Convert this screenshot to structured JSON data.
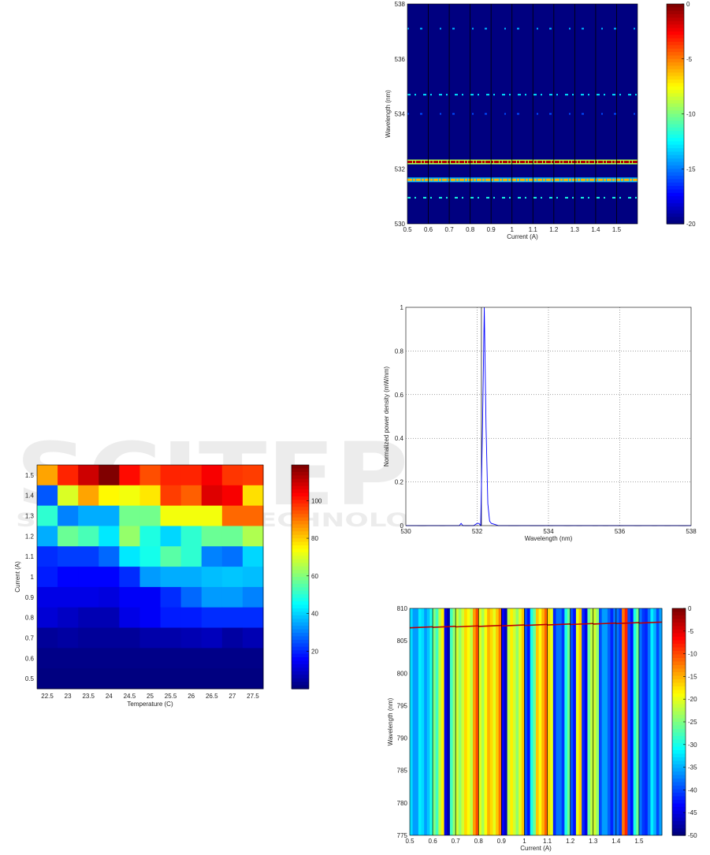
{
  "watermark": {
    "line1": "SCITEPRESS",
    "line2": "SCIENCE AND TECHNOLOGY PUBLICATIONS"
  },
  "colors": {
    "line": "#0000ff",
    "grid": "#444444",
    "frame": "#000000"
  },
  "chart_data": [
    {
      "id": "heatmap",
      "type": "heatmap",
      "xlabel": "Temperature (C)",
      "ylabel": "Current (A)",
      "x": [
        "22.5",
        "23",
        "23.5",
        "24",
        "24.5",
        "25",
        "25.5",
        "26",
        "26.5",
        "27",
        "27.5"
      ],
      "y": [
        "1.5",
        "1.4",
        "1.3",
        "1.2",
        "1.1",
        "1",
        "0.9",
        "0.8",
        "0.7",
        "0.6",
        "0.5"
      ],
      "values": [
        [
          85,
          100,
          110,
          119,
          103,
          95,
          100,
          100,
          105,
          98,
          97
        ],
        [
          25,
          70,
          85,
          75,
          73,
          77,
          97,
          93,
          108,
          105,
          78
        ],
        [
          50,
          30,
          35,
          35,
          58,
          58,
          73,
          73,
          73,
          92,
          92
        ],
        [
          35,
          57,
          53,
          42,
          62,
          48,
          40,
          50,
          57,
          57,
          65
        ],
        [
          20,
          22,
          22,
          27,
          42,
          47,
          55,
          50,
          30,
          28,
          40
        ],
        [
          18,
          15,
          15,
          15,
          20,
          33,
          35,
          35,
          37,
          38,
          37
        ],
        [
          12,
          12,
          12,
          11,
          14,
          14,
          20,
          27,
          33,
          33,
          30
        ],
        [
          10,
          8,
          6,
          6,
          12,
          14,
          18,
          18,
          20,
          20,
          20
        ],
        [
          3,
          4,
          3,
          3,
          3,
          5,
          5,
          6,
          7,
          4,
          6
        ],
        [
          1,
          1,
          1,
          1,
          1,
          1,
          1,
          1,
          1,
          1,
          1
        ],
        [
          0,
          0,
          0,
          0,
          0,
          0,
          0,
          0,
          0,
          0,
          0
        ]
      ],
      "colorbar": {
        "range": [
          0,
          119
        ],
        "ticks": [
          "20",
          "40",
          "60",
          "80",
          "100"
        ]
      }
    },
    {
      "id": "spectrogram-green",
      "type": "heatmap",
      "xlabel": "Current (A)",
      "ylabel": "Wavelength (nm)",
      "xlim": [
        0.5,
        1.6
      ],
      "ylim": [
        530,
        538
      ],
      "xticks": [
        "0.5",
        "0.6",
        "0.7",
        "0.8",
        "0.9",
        "1",
        "1.1",
        "1.2",
        "1.3",
        "1.4",
        "1.5"
      ],
      "yticks": [
        "530",
        "532",
        "534",
        "536",
        "538"
      ],
      "background_level": -20,
      "bands": [
        {
          "wavelength": 532.25,
          "level": -1
        },
        {
          "wavelength": 531.6,
          "level": -6
        },
        {
          "wavelength": 530.95,
          "level": -12
        },
        {
          "wavelength": 534.7,
          "level": -13
        },
        {
          "wavelength": 534.0,
          "level": -16
        },
        {
          "wavelength": 537.1,
          "level": -14
        }
      ],
      "colorbar": {
        "range": [
          -20,
          0
        ],
        "ticks": [
          "0",
          "-5",
          "-10",
          "-15",
          "-20"
        ]
      }
    },
    {
      "id": "spectrum",
      "type": "line",
      "xlabel": "Wavelength (nm)",
      "ylabel": "Normalized power density (mW/nm)",
      "xlim": [
        530,
        538
      ],
      "ylim": [
        0,
        1
      ],
      "xticks": [
        "530",
        "532",
        "534",
        "536",
        "538"
      ],
      "yticks": [
        "0",
        "0.2",
        "0.4",
        "0.6",
        "0.8",
        "1"
      ],
      "grid": true,
      "series": [
        {
          "name": "spectrum",
          "x": [
            530,
            531.5,
            531.55,
            531.6,
            531.9,
            532.0,
            532.05,
            532.1,
            532.15,
            532.2,
            532.25,
            532.3,
            532.35,
            532.4,
            532.5,
            532.6,
            533,
            538
          ],
          "y": [
            0,
            0,
            0.01,
            0,
            0,
            0.01,
            0.01,
            0,
            0.45,
            1.0,
            0.45,
            0.1,
            0.02,
            0.01,
            0.005,
            0,
            0,
            0
          ]
        }
      ]
    },
    {
      "id": "spectrogram-ir",
      "type": "heatmap",
      "xlabel": "Current (A)",
      "ylabel": "Wavelength (nm)",
      "xlim": [
        0.5,
        1.6
      ],
      "ylim": [
        775,
        810
      ],
      "xticks": [
        "0.5",
        "0.6",
        "0.7",
        "0.8",
        "0.9",
        "1",
        "1.1",
        "1.2",
        "1.3",
        "1.4",
        "1.5"
      ],
      "yticks": [
        "775",
        "780",
        "785",
        "790",
        "795",
        "800",
        "805",
        "810"
      ],
      "column_step": 0.025,
      "column_levels": [
        -33,
        -36,
        -33,
        -34,
        -25,
        -22,
        -45,
        -28,
        -21,
        -21,
        -19,
        -14,
        -20,
        -19,
        -17,
        -16,
        -44,
        -22,
        -21,
        -20,
        -40,
        -30,
        -16,
        -15,
        -17,
        -42,
        -38,
        -30,
        -40,
        -20,
        -42,
        -26,
        -21,
        -40,
        -36,
        -42,
        -38,
        -12,
        -40,
        -30,
        -38,
        -42,
        -32,
        -40
      ],
      "peak_line": {
        "start_wavelength": 807.0,
        "end_wavelength": 807.8,
        "level": -3
      },
      "colorbar": {
        "range": [
          -50,
          0
        ],
        "ticks": [
          "0",
          "-5",
          "-10",
          "-15",
          "-20",
          "-25",
          "-30",
          "-35",
          "-40",
          "-45",
          "-50"
        ]
      }
    }
  ]
}
